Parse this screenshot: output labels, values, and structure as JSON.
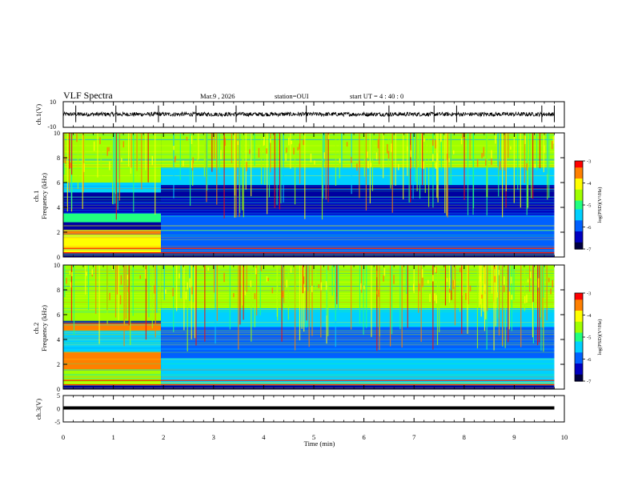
{
  "header": {
    "title": "VLF Spectra",
    "date": "Mar.9  , 2026",
    "station": "station=OUI",
    "start": "start  UT  =   4 : 40 : 0"
  },
  "colorbar": {
    "label": "log(PSD)(V²/Hz)",
    "ticks": [
      "-3",
      "-4",
      "-5",
      "-6",
      "-7"
    ],
    "colors": [
      "#000080",
      "#0000ff",
      "#0080ff",
      "#00ffff",
      "#00ff80",
      "#80ff00",
      "#ffff00",
      "#ff8000",
      "#ff0000",
      "#ffffff"
    ]
  },
  "chart_data": [
    {
      "type": "line",
      "name": "ch1 waveform",
      "ylabel": "ch.1(V)",
      "ylim": [
        -10,
        10
      ],
      "y_ticks": [
        "10",
        "-10"
      ],
      "xlim": [
        0,
        10
      ],
      "description_baseline_v": 0.0,
      "spikes_min": [
        0.25,
        1.05,
        1.9,
        2.65,
        3.45,
        4.85,
        6.5,
        7.4,
        7.85,
        9.55,
        9.8
      ]
    },
    {
      "type": "heatmap",
      "name": "ch1 spectrogram",
      "ylabel": "ch.1",
      "ylabel2": "Frequency  (kHz)",
      "ylim": [
        0,
        10
      ],
      "y_ticks": [
        "10",
        "8",
        "6",
        "4",
        "2",
        "0"
      ],
      "xlim": [
        0,
        10
      ],
      "transition_min": 1.95,
      "end_min": 9.8,
      "bands_before": [
        {
          "f0": 6.0,
          "f1": 10.0,
          "logpsd": -4.6
        },
        {
          "f0": 5.2,
          "f1": 6.0,
          "logpsd": -5.3
        },
        {
          "f0": 3.5,
          "f1": 4.5,
          "logpsd": -6.4
        },
        {
          "f0": 2.8,
          "f1": 3.5,
          "logpsd": -5.0
        },
        {
          "f0": 1.8,
          "f1": 2.2,
          "logpsd": -3.3
        },
        {
          "f0": 0.3,
          "f1": 1.8,
          "logpsd": -4.2
        }
      ],
      "bands_after": [
        {
          "f0": 7.2,
          "f1": 10.0,
          "logpsd": -4.7
        },
        {
          "f0": 5.8,
          "f1": 7.2,
          "logpsd": -5.6
        },
        {
          "f0": 3.4,
          "f1": 4.8,
          "logpsd": -6.7
        },
        {
          "f0": 2.0,
          "f1": 3.4,
          "logpsd": -6.2
        },
        {
          "f0": 0.4,
          "f1": 2.0,
          "logpsd": -5.8
        }
      ]
    },
    {
      "type": "heatmap",
      "name": "ch2 spectrogram",
      "ylabel": "ch.2",
      "ylabel2": "Frequency  (kHz)",
      "ylim": [
        0,
        10
      ],
      "y_ticks": [
        "10",
        "8",
        "6",
        "4",
        "2",
        "0"
      ],
      "xlim": [
        0,
        10
      ],
      "transition_min": 1.95,
      "end_min": 9.8,
      "bands_before": [
        {
          "f0": 5.5,
          "f1": 10.0,
          "logpsd": -4.4
        },
        {
          "f0": 4.7,
          "f1": 5.3,
          "logpsd": -3.4
        },
        {
          "f0": 3.0,
          "f1": 4.7,
          "logpsd": -5.4
        },
        {
          "f0": 1.6,
          "f1": 3.0,
          "logpsd": -3.6
        },
        {
          "f0": 0.3,
          "f1": 1.6,
          "logpsd": -4.4
        }
      ],
      "bands_after": [
        {
          "f0": 6.5,
          "f1": 10.0,
          "logpsd": -4.6
        },
        {
          "f0": 5.0,
          "f1": 6.5,
          "logpsd": -5.4
        },
        {
          "f0": 2.5,
          "f1": 5.0,
          "logpsd": -6.1
        },
        {
          "f0": 0.4,
          "f1": 2.5,
          "logpsd": -5.7
        }
      ]
    },
    {
      "type": "line",
      "name": "ch3 waveform",
      "ylabel": "ch.3(V)",
      "ylim": [
        -5,
        5
      ],
      "y_ticks": [
        "5",
        "0",
        "-5"
      ],
      "xlim": [
        0,
        10
      ],
      "value_v": 0.3
    }
  ],
  "xaxis": {
    "label": "Time  (min)",
    "ticks": [
      "0",
      "1",
      "2",
      "3",
      "4",
      "5",
      "6",
      "7",
      "8",
      "9",
      "10"
    ]
  }
}
